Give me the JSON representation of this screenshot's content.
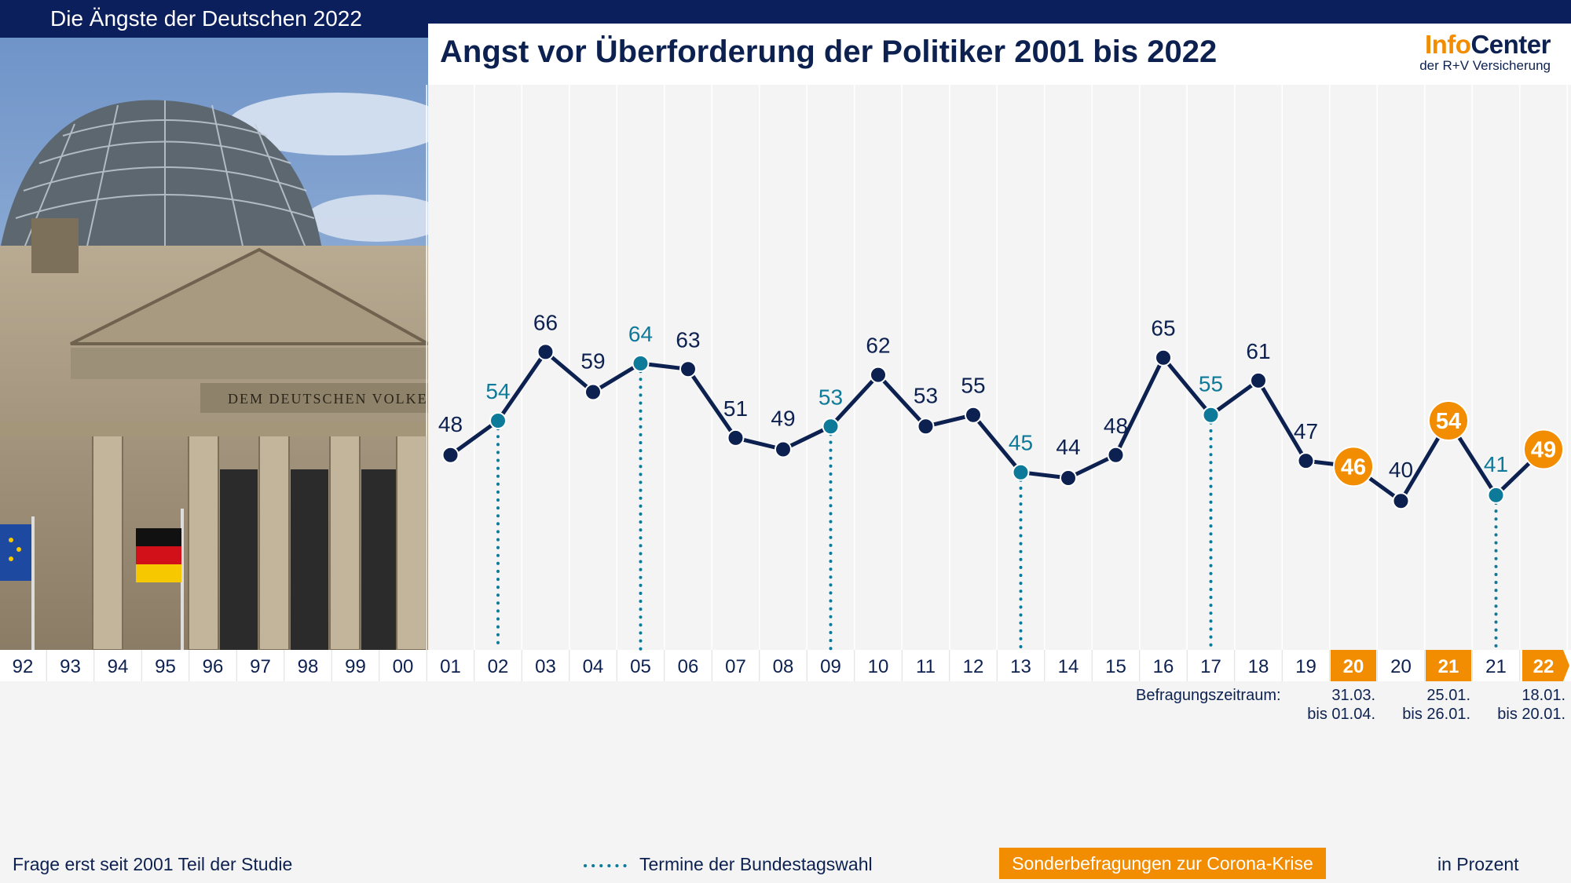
{
  "header": {
    "series_title": "Die Ängste der Deutschen 2022",
    "chart_title": "Angst vor Überforderung der Politiker 2001 bis 2022",
    "brand_info": "Info",
    "brand_center": "Center",
    "brand_sub": "der R+V Versicherung"
  },
  "photo": {
    "inscription": "DEM DEUTSCHEN VOLKE"
  },
  "colors": {
    "navy": "#0d2150",
    "teal": "#0e7a9a",
    "orange": "#f28c00"
  },
  "chart_data": {
    "type": "line",
    "title": "Angst vor Überforderung der Politiker 2001 bis 2022",
    "unit": "in Prozent",
    "x_axis_labels": [
      "92",
      "93",
      "94",
      "95",
      "96",
      "97",
      "98",
      "99",
      "00",
      "01",
      "02",
      "03",
      "04",
      "05",
      "06",
      "07",
      "08",
      "09",
      "10",
      "11",
      "12",
      "13",
      "14",
      "15",
      "16",
      "17",
      "18",
      "19",
      "20",
      "20",
      "21",
      "21",
      "22"
    ],
    "points": [
      {
        "label": "01",
        "value": 48,
        "type": "regular"
      },
      {
        "label": "02",
        "value": 54,
        "type": "election"
      },
      {
        "label": "03",
        "value": 66,
        "type": "regular"
      },
      {
        "label": "04",
        "value": 59,
        "type": "regular"
      },
      {
        "label": "05",
        "value": 64,
        "type": "election"
      },
      {
        "label": "06",
        "value": 63,
        "type": "regular"
      },
      {
        "label": "07",
        "value": 51,
        "type": "regular"
      },
      {
        "label": "08",
        "value": 49,
        "type": "regular"
      },
      {
        "label": "09",
        "value": 53,
        "type": "election"
      },
      {
        "label": "10",
        "value": 62,
        "type": "regular"
      },
      {
        "label": "11",
        "value": 53,
        "type": "regular"
      },
      {
        "label": "12",
        "value": 55,
        "type": "regular"
      },
      {
        "label": "13",
        "value": 45,
        "type": "election"
      },
      {
        "label": "14",
        "value": 44,
        "type": "regular"
      },
      {
        "label": "15",
        "value": 48,
        "type": "regular"
      },
      {
        "label": "16",
        "value": 65,
        "type": "regular"
      },
      {
        "label": "17",
        "value": 55,
        "type": "election"
      },
      {
        "label": "18",
        "value": 61,
        "type": "regular"
      },
      {
        "label": "19",
        "value": 47,
        "type": "regular"
      },
      {
        "label": "20",
        "value": 46,
        "type": "corona"
      },
      {
        "label": "20",
        "value": 40,
        "type": "regular"
      },
      {
        "label": "21",
        "value": 54,
        "type": "corona"
      },
      {
        "label": "21",
        "value": 41,
        "type": "election"
      },
      {
        "label": "22",
        "value": 49,
        "type": "corona"
      }
    ],
    "survey_periods": [
      {
        "label": "20",
        "line1": "31.03.",
        "line2": "bis 01.04."
      },
      {
        "label": "21",
        "line1": "25.01.",
        "line2": "bis 26.01."
      },
      {
        "label": "22",
        "line1": "18.01.",
        "line2": "bis 20.01."
      }
    ],
    "survey_period_label": "Befragungszeitraum:",
    "legend": {
      "election": "Termine der Bundestagswahl",
      "corona": "Sonderbefragungen zur Corona-Krise"
    },
    "footnote": "Frage erst seit 2001 Teil der Studie"
  }
}
